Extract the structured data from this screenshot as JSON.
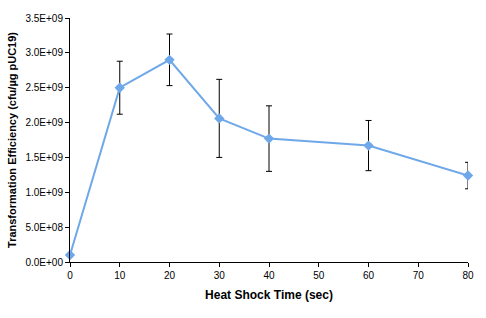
{
  "chart_data": {
    "type": "line",
    "x_label": "Heat Shock Time (sec)",
    "y_label": "Transformation Efficiency (cfu/µg pUC19)",
    "x": [
      0,
      10,
      20,
      30,
      40,
      60,
      80
    ],
    "values": [
      100000000,
      2500000000,
      2900000000,
      2060000000,
      1770000000,
      1670000000,
      1240000000
    ],
    "errors": [
      0,
      380000000,
      370000000,
      560000000,
      470000000,
      360000000,
      190000000
    ],
    "color": "#6fa8e8",
    "marker": "diamond",
    "xlim": [
      0,
      80
    ],
    "xticks": [
      0,
      10,
      20,
      30,
      40,
      50,
      60,
      70,
      80
    ],
    "ylim": [
      0,
      3500000000
    ],
    "yticks": [
      {
        "value": 0,
        "label": "0.0E+00"
      },
      {
        "value": 500000000,
        "label": "5.0E+08"
      },
      {
        "value": 1000000000,
        "label": "1.0E+09"
      },
      {
        "value": 1500000000,
        "label": "1.5E+09"
      },
      {
        "value": 2000000000,
        "label": "2.0E+09"
      },
      {
        "value": 2500000000,
        "label": "2.5E+09"
      },
      {
        "value": 3000000000,
        "label": "3.0E+09"
      },
      {
        "value": 3500000000,
        "label": "3.5E+09"
      }
    ],
    "grid": false
  }
}
